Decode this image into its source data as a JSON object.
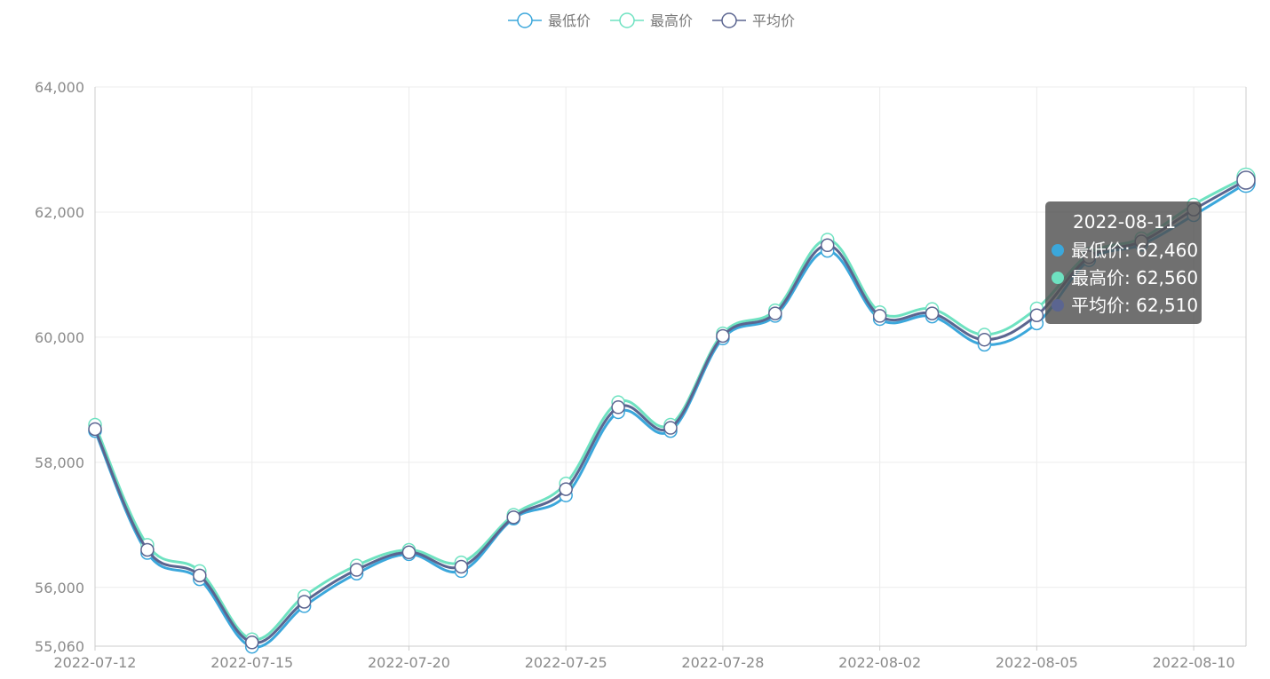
{
  "chart_data": {
    "type": "line",
    "smooth": true,
    "legend_position": "top-center",
    "x": [
      "2022-07-12",
      "2022-07-13",
      "2022-07-14",
      "2022-07-15",
      "2022-07-18",
      "2022-07-19",
      "2022-07-20",
      "2022-07-21",
      "2022-07-22",
      "2022-07-25",
      "2022-07-26",
      "2022-07-27",
      "2022-07-28",
      "2022-07-29",
      "2022-08-01",
      "2022-08-02",
      "2022-08-03",
      "2022-08-04",
      "2022-08-05",
      "2022-08-08",
      "2022-08-09",
      "2022-08-10",
      "2022-08-11"
    ],
    "x_ticks": [
      "2022-07-12",
      "2022-07-15",
      "2022-07-20",
      "2022-07-25",
      "2022-07-28",
      "2022-08-02",
      "2022-08-05",
      "2022-08-10"
    ],
    "y_ticks": [
      55060,
      56000,
      58000,
      60000,
      62000,
      64000
    ],
    "y_tick_labels": [
      "55,060",
      "56,000",
      "58,000",
      "60,000",
      "62,000",
      "64,000"
    ],
    "ylim": [
      55060,
      64000
    ],
    "grid": true,
    "series": [
      {
        "name": "最低价",
        "color": "#3ba7db",
        "values": [
          58500,
          56550,
          56130,
          55050,
          55700,
          56220,
          56530,
          56260,
          57100,
          57470,
          58800,
          58500,
          59980,
          60340,
          61380,
          60290,
          60330,
          59880,
          60220,
          61230,
          61480,
          61950,
          62460
        ]
      },
      {
        "name": "最高价",
        "color": "#6ee2c1",
        "values": [
          58600,
          56680,
          56260,
          55170,
          55860,
          56350,
          56600,
          56400,
          57160,
          57660,
          58960,
          58600,
          60060,
          60430,
          61560,
          60400,
          60450,
          60040,
          60460,
          61330,
          61580,
          62120,
          62560
        ]
      },
      {
        "name": "平均价",
        "color": "#5b6590",
        "values": [
          58530,
          56600,
          56190,
          55120,
          55770,
          56280,
          56560,
          56330,
          57120,
          57570,
          58880,
          58550,
          60020,
          60380,
          61470,
          60340,
          60380,
          59960,
          60350,
          61280,
          61530,
          62040,
          62510
        ]
      }
    ],
    "tooltip": {
      "date": "2022-08-11",
      "rows": [
        "最低价: 62,460",
        "最高价: 62,560",
        "平均价: 62,510"
      ]
    }
  }
}
